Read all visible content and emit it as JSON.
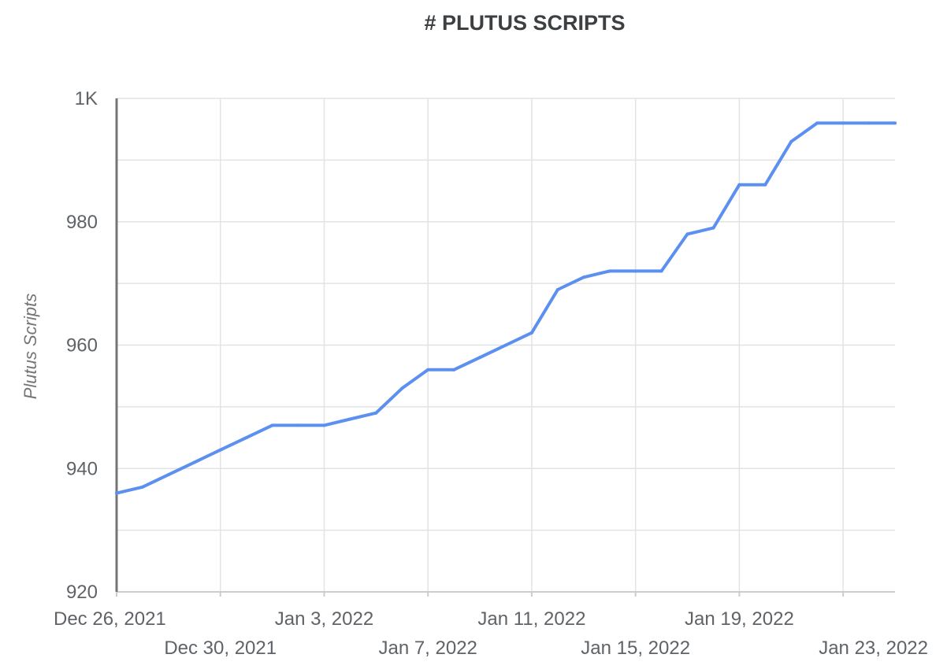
{
  "chart_data": {
    "type": "line",
    "title": "# PLUTUS SCRIPTS",
    "xlabel": "",
    "ylabel": "Plutus Scripts",
    "x_type": "date",
    "xlim": [
      "2021-12-26",
      "2022-01-25"
    ],
    "ylim": [
      920,
      1000
    ],
    "y_ticks": [
      920,
      940,
      960,
      980,
      1000
    ],
    "y_tick_labels": [
      "920",
      "940",
      "960",
      "980",
      "1K"
    ],
    "x_ticks": [
      "2021-12-26",
      "2021-12-30",
      "2022-01-03",
      "2022-01-07",
      "2022-01-11",
      "2022-01-15",
      "2022-01-19",
      "2022-01-23"
    ],
    "x_tick_labels": [
      "Dec 26, 2021",
      "Dec 30, 2021",
      "Jan 3, 2022",
      "Jan 7, 2022",
      "Jan 11, 2022",
      "Jan 15, 2022",
      "Jan 19, 2022",
      "Jan 23, 2022"
    ],
    "grid": true,
    "series": [
      {
        "name": "",
        "color": "#5b8ff0",
        "points": [
          {
            "x": "2021-12-26",
            "y": 936
          },
          {
            "x": "2021-12-27",
            "y": 937
          },
          {
            "x": "2021-12-28",
            "y": 939
          },
          {
            "x": "2021-12-29",
            "y": 941
          },
          {
            "x": "2021-12-30",
            "y": 943
          },
          {
            "x": "2021-12-31",
            "y": 945
          },
          {
            "x": "2022-01-01",
            "y": 947
          },
          {
            "x": "2022-01-02",
            "y": 947
          },
          {
            "x": "2022-01-03",
            "y": 947
          },
          {
            "x": "2022-01-04",
            "y": 948
          },
          {
            "x": "2022-01-05",
            "y": 949
          },
          {
            "x": "2022-01-06",
            "y": 953
          },
          {
            "x": "2022-01-07",
            "y": 956
          },
          {
            "x": "2022-01-08",
            "y": 956
          },
          {
            "x": "2022-01-09",
            "y": 958
          },
          {
            "x": "2022-01-10",
            "y": 960
          },
          {
            "x": "2022-01-11",
            "y": 962
          },
          {
            "x": "2022-01-12",
            "y": 969
          },
          {
            "x": "2022-01-13",
            "y": 971
          },
          {
            "x": "2022-01-14",
            "y": 972
          },
          {
            "x": "2022-01-15",
            "y": 972
          },
          {
            "x": "2022-01-16",
            "y": 972
          },
          {
            "x": "2022-01-17",
            "y": 978
          },
          {
            "x": "2022-01-18",
            "y": 979
          },
          {
            "x": "2022-01-19",
            "y": 986
          },
          {
            "x": "2022-01-20",
            "y": 986
          },
          {
            "x": "2022-01-21",
            "y": 993
          },
          {
            "x": "2022-01-22",
            "y": 996
          },
          {
            "x": "2022-01-23",
            "y": 996
          },
          {
            "x": "2022-01-24",
            "y": 996
          },
          {
            "x": "2022-01-25",
            "y": 996
          }
        ]
      }
    ]
  }
}
